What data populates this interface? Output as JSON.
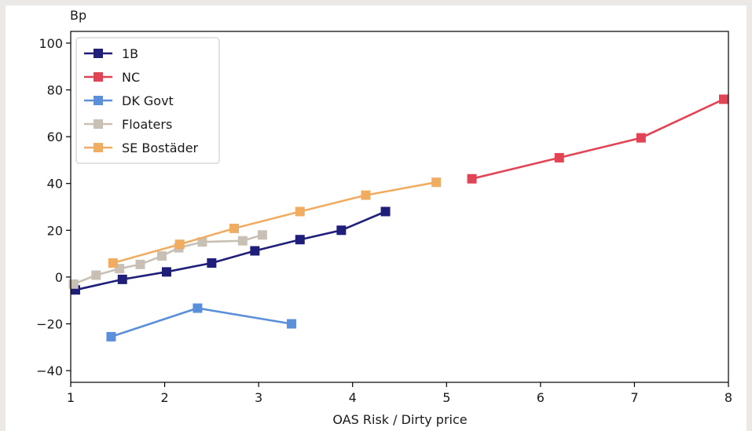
{
  "chart_data": {
    "type": "line",
    "title": "",
    "xlabel": "OAS Risk / Dirty price",
    "ylabel": "Bp",
    "xlim": [
      1,
      8
    ],
    "ylim": [
      -45,
      105
    ],
    "xticks": [
      1,
      2,
      3,
      4,
      5,
      6,
      7,
      8
    ],
    "yticks": [
      -40,
      -20,
      0,
      20,
      40,
      60,
      80,
      100
    ],
    "legend_position": "top-left",
    "grid": false,
    "series": [
      {
        "name": "1B",
        "color": "#1f1f7a",
        "x": [
          1.05,
          1.55,
          2.02,
          2.5,
          2.96,
          3.44,
          3.88,
          4.35
        ],
        "y": [
          -5.5,
          -1,
          2.2,
          6,
          11.2,
          16,
          20,
          28
        ]
      },
      {
        "name": "NC",
        "color": "#e04455",
        "x": [
          5.27,
          6.2,
          7.07,
          7.95
        ],
        "y": [
          42,
          51,
          59.5,
          76
        ]
      },
      {
        "name": "DK Govt",
        "color": "#5b8fd9",
        "x": [
          1.43,
          2.35,
          3.35
        ],
        "y": [
          -25.5,
          -13.3,
          -20
        ]
      },
      {
        "name": "Floaters",
        "color": "#c9c0b5",
        "x": [
          1.03,
          1.27,
          1.52,
          1.74,
          1.97,
          2.15,
          2.4,
          2.83,
          3.04
        ],
        "y": [
          -3,
          0.8,
          3.6,
          5.4,
          9,
          12.5,
          15,
          15.5,
          18
        ]
      },
      {
        "name": "SE Bostäder",
        "color": "#f0ad62",
        "x": [
          1.45,
          2.16,
          2.74,
          3.44,
          4.14,
          4.89
        ],
        "y": [
          6,
          14,
          20.8,
          28,
          35,
          40.5
        ]
      }
    ]
  }
}
